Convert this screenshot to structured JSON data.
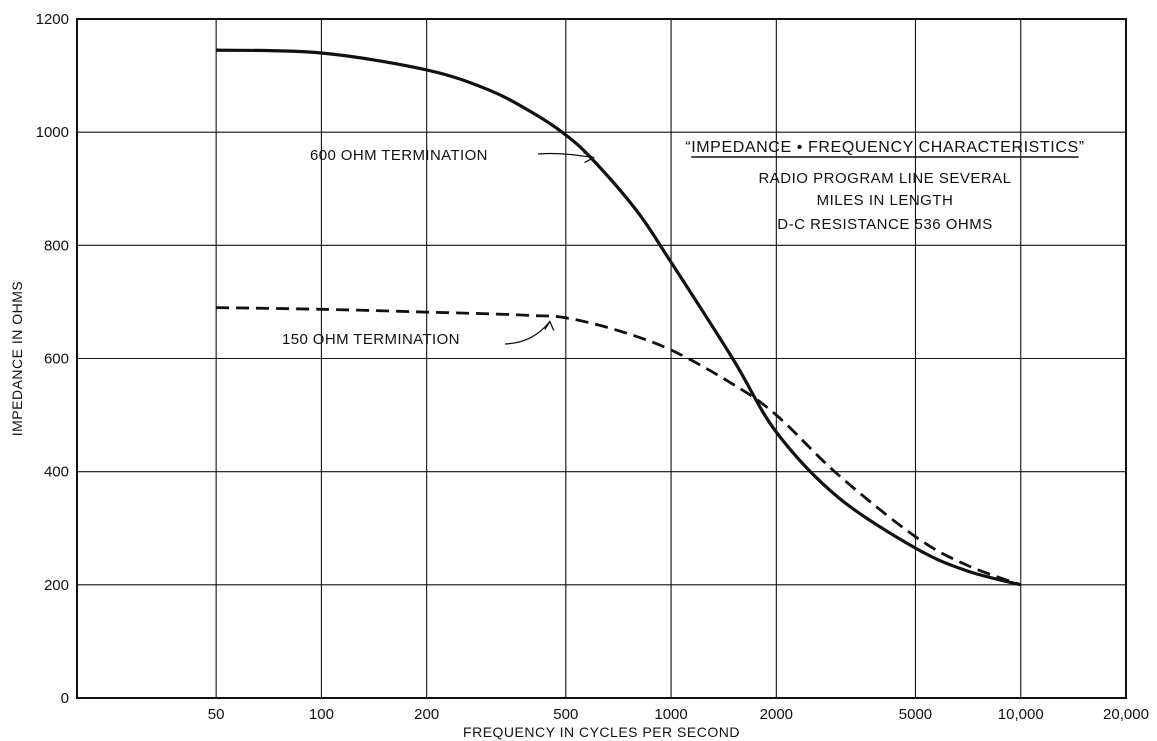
{
  "chart_data": {
    "type": "line",
    "title": "“IMPEDANCE • FREQUENCY CHARACTERISTICS”",
    "subtitle_lines": [
      "RADIO PROGRAM LINE SEVERAL",
      "MILES IN LENGTH",
      "D-C RESISTANCE 536 OHMS"
    ],
    "xlabel": "FREQUENCY IN CYCLES PER SECOND",
    "ylabel": "IMPEDANCE IN OHMS",
    "x_scale": "log",
    "xlim": [
      20,
      20000
    ],
    "ylim": [
      0,
      1200
    ],
    "x_ticks": [
      50,
      100,
      200,
      500,
      1000,
      2000,
      5000,
      10000,
      20000
    ],
    "x_tick_labels": [
      "50",
      "100",
      "200",
      "500",
      "1000",
      "2000",
      "5000",
      "10,000",
      "20,000"
    ],
    "x_gridlines": [
      20,
      50,
      100,
      200,
      500,
      1000,
      2000,
      5000,
      10000,
      20000
    ],
    "y_ticks": [
      0,
      200,
      400,
      600,
      800,
      1000,
      1200
    ],
    "y_tick_labels": [
      "0",
      "200",
      "400",
      "600",
      "800",
      "1000",
      "1200"
    ],
    "grid": true,
    "series": [
      {
        "name": "600 OHM TERMINATION",
        "style": "solid",
        "color": "#111111",
        "x": [
          50,
          100,
          200,
          300,
          400,
          500,
          600,
          800,
          1000,
          1500,
          2000,
          3000,
          5000,
          7000,
          10000
        ],
        "y": [
          1145,
          1140,
          1110,
          1075,
          1035,
          995,
          950,
          860,
          770,
          600,
          470,
          355,
          265,
          225,
          200
        ]
      },
      {
        "name": "150 OHM TERMINATION",
        "style": "dashed",
        "color": "#111111",
        "x": [
          50,
          100,
          200,
          300,
          400,
          500,
          700,
          1000,
          1500,
          2000,
          3000,
          5000,
          7000,
          10000
        ],
        "y": [
          690,
          687,
          682,
          679,
          676,
          672,
          650,
          615,
          555,
          500,
          395,
          285,
          235,
          200
        ]
      }
    ],
    "annotations": [
      {
        "text": "600 OHM TERMINATION",
        "points_to": [
          600,
          955
        ]
      },
      {
        "text": "150 OHM TERMINATION",
        "points_to": [
          450,
          676
        ]
      }
    ]
  }
}
